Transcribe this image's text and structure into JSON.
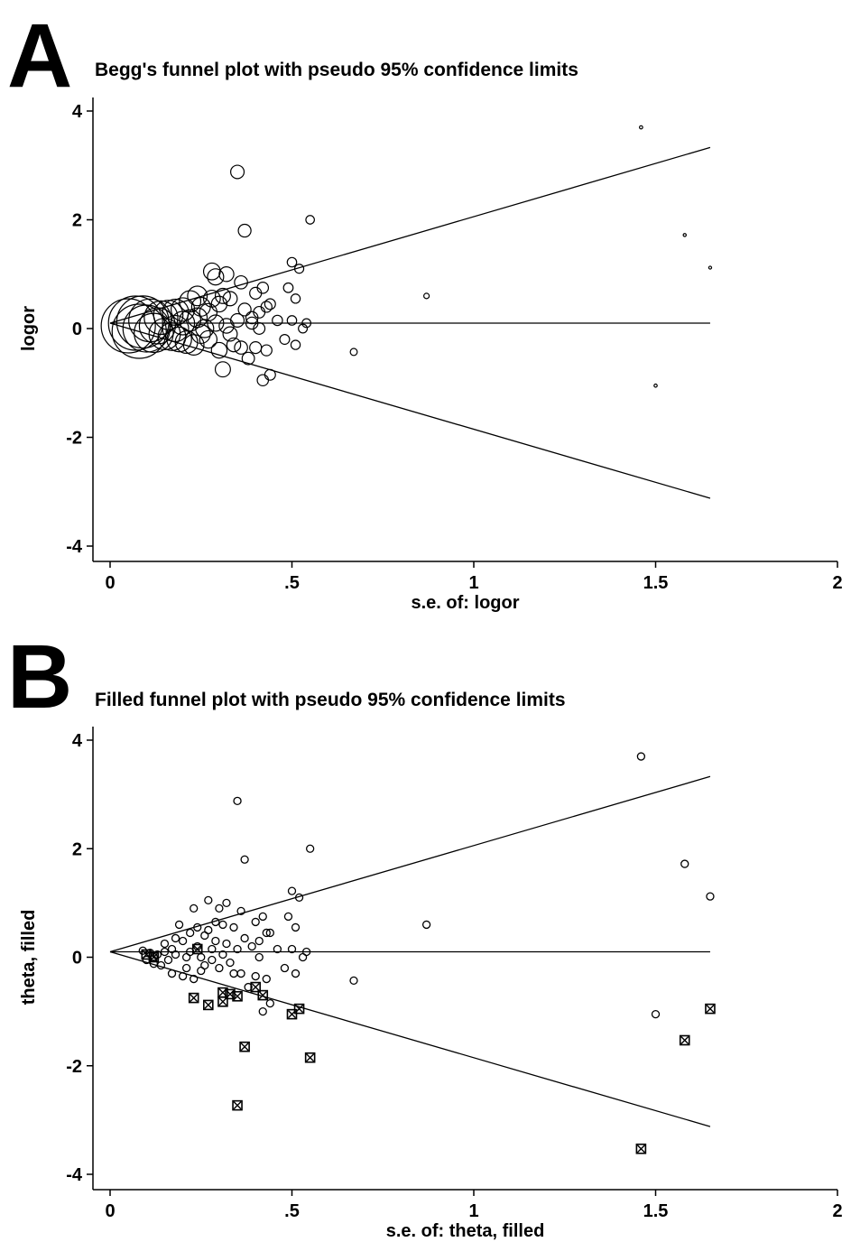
{
  "panels": [
    {
      "letter": "A",
      "title": "Begg's funnel plot with pseudo 95% confidence limits"
    },
    {
      "letter": "B",
      "title": "Filled funnel plot with pseudo 95% confidence limits"
    }
  ],
  "chart_data": [
    {
      "type": "scatter",
      "title": "Begg's funnel plot with pseudo 95% confidence limits",
      "xlabel": "s.e. of: logor",
      "ylabel": "logor",
      "xlim": [
        0,
        2
      ],
      "ylim": [
        -4,
        4
      ],
      "xticks": [
        "0",
        ".5",
        "1",
        "1.5",
        "2"
      ],
      "yticks": [
        "4",
        "2",
        "0",
        "-2",
        "-4"
      ],
      "grid": false,
      "marker": "hollow circle, size proportional to study weight",
      "pooled_estimate": 0.1,
      "confidence_limits": {
        "at_se_0": 0.1,
        "upper_at_se_1.65": 3.33,
        "lower_at_se_1.65": -3.12
      },
      "points": [
        [
          0.05,
          0.05
        ],
        [
          0.07,
          0.1
        ],
        [
          0.08,
          -0.05
        ],
        [
          0.09,
          0.12
        ],
        [
          0.1,
          0.0
        ],
        [
          0.11,
          0.15
        ],
        [
          0.12,
          -0.08
        ],
        [
          0.13,
          0.05
        ],
        [
          0.14,
          0.2
        ],
        [
          0.15,
          -0.1
        ],
        [
          0.16,
          0.25
        ],
        [
          0.17,
          -0.15
        ],
        [
          0.18,
          0.3
        ],
        [
          0.18,
          0.0
        ],
        [
          0.19,
          -0.2
        ],
        [
          0.2,
          0.35
        ],
        [
          0.2,
          0.1
        ],
        [
          0.21,
          -0.25
        ],
        [
          0.22,
          0.5
        ],
        [
          0.22,
          0.15
        ],
        [
          0.23,
          -0.3
        ],
        [
          0.24,
          0.6
        ],
        [
          0.24,
          0.2
        ],
        [
          0.25,
          -0.1
        ],
        [
          0.25,
          0.4
        ],
        [
          0.26,
          0.0
        ],
        [
          0.27,
          0.3
        ],
        [
          0.27,
          -0.2
        ],
        [
          0.28,
          1.05
        ],
        [
          0.28,
          0.55
        ],
        [
          0.29,
          0.1
        ],
        [
          0.29,
          0.95
        ],
        [
          0.3,
          -0.4
        ],
        [
          0.3,
          0.45
        ],
        [
          0.31,
          -0.75
        ],
        [
          0.31,
          0.6
        ],
        [
          0.32,
          0.05
        ],
        [
          0.32,
          1.0
        ],
        [
          0.33,
          -0.1
        ],
        [
          0.33,
          0.55
        ],
        [
          0.34,
          -0.3
        ],
        [
          0.35,
          0.15
        ],
        [
          0.35,
          2.88
        ],
        [
          0.36,
          0.85
        ],
        [
          0.36,
          -0.35
        ],
        [
          0.37,
          1.8
        ],
        [
          0.37,
          0.35
        ],
        [
          0.38,
          -0.55
        ],
        [
          0.39,
          0.2
        ],
        [
          0.39,
          0.1
        ],
        [
          0.4,
          0.65
        ],
        [
          0.4,
          -0.35
        ],
        [
          0.41,
          0.3
        ],
        [
          0.41,
          0.0
        ],
        [
          0.42,
          -0.95
        ],
        [
          0.42,
          0.75
        ],
        [
          0.43,
          -0.4
        ],
        [
          0.43,
          0.4
        ],
        [
          0.44,
          -0.85
        ],
        [
          0.44,
          0.45
        ],
        [
          0.46,
          0.15
        ],
        [
          0.48,
          -0.2
        ],
        [
          0.49,
          0.75
        ],
        [
          0.5,
          1.22
        ],
        [
          0.5,
          0.15
        ],
        [
          0.51,
          -0.3
        ],
        [
          0.51,
          0.55
        ],
        [
          0.52,
          1.1
        ],
        [
          0.53,
          0.0
        ],
        [
          0.54,
          0.1
        ],
        [
          0.55,
          2.0
        ],
        [
          0.67,
          -0.43
        ],
        [
          0.87,
          0.6
        ],
        [
          1.46,
          3.7
        ],
        [
          1.5,
          -1.05
        ],
        [
          1.58,
          1.72
        ],
        [
          1.65,
          1.12
        ]
      ]
    },
    {
      "type": "scatter",
      "title": "Filled funnel plot with pseudo 95% confidence limits",
      "xlabel": "s.e. of: theta, filled",
      "ylabel": "theta, filled",
      "xlim": [
        0,
        2
      ],
      "ylim": [
        -4,
        4
      ],
      "xticks": [
        "0",
        ".5",
        "1",
        "1.5",
        "2"
      ],
      "yticks": [
        "4",
        "2",
        "0",
        "-2",
        "-4"
      ],
      "grid": false,
      "pooled_estimate": 0.1,
      "confidence_limits": {
        "at_se_0": 0.1,
        "upper_at_se_1.65": 3.33,
        "lower_at_se_1.65": -3.12
      },
      "series": [
        {
          "marker": "hollow circle",
          "points": [
            [
              0.09,
              0.12
            ],
            [
              0.1,
              -0.05
            ],
            [
              0.11,
              0.08
            ],
            [
              0.12,
              0.0
            ],
            [
              0.12,
              -0.12
            ],
            [
              0.13,
              0.05
            ],
            [
              0.14,
              -0.15
            ],
            [
              0.15,
              0.1
            ],
            [
              0.15,
              0.25
            ],
            [
              0.16,
              -0.05
            ],
            [
              0.17,
              0.15
            ],
            [
              0.17,
              -0.3
            ],
            [
              0.18,
              0.35
            ],
            [
              0.18,
              0.05
            ],
            [
              0.19,
              0.6
            ],
            [
              0.2,
              -0.35
            ],
            [
              0.2,
              0.3
            ],
            [
              0.21,
              0.0
            ],
            [
              0.21,
              -0.2
            ],
            [
              0.22,
              0.45
            ],
            [
              0.22,
              0.1
            ],
            [
              0.23,
              0.9
            ],
            [
              0.23,
              -0.4
            ],
            [
              0.24,
              0.55
            ],
            [
              0.24,
              0.2
            ],
            [
              0.25,
              -0.25
            ],
            [
              0.25,
              0.0
            ],
            [
              0.26,
              0.4
            ],
            [
              0.26,
              -0.15
            ],
            [
              0.27,
              1.05
            ],
            [
              0.27,
              0.5
            ],
            [
              0.28,
              0.15
            ],
            [
              0.28,
              -0.05
            ],
            [
              0.29,
              0.3
            ],
            [
              0.29,
              0.65
            ],
            [
              0.3,
              0.9
            ],
            [
              0.3,
              -0.2
            ],
            [
              0.31,
              0.05
            ],
            [
              0.31,
              0.6
            ],
            [
              0.32,
              1.0
            ],
            [
              0.32,
              0.25
            ],
            [
              0.33,
              -0.1
            ],
            [
              0.34,
              0.55
            ],
            [
              0.34,
              -0.3
            ],
            [
              0.35,
              2.88
            ],
            [
              0.35,
              0.15
            ],
            [
              0.36,
              0.85
            ],
            [
              0.36,
              -0.3
            ],
            [
              0.37,
              1.8
            ],
            [
              0.37,
              0.35
            ],
            [
              0.38,
              -0.55
            ],
            [
              0.39,
              0.2
            ],
            [
              0.4,
              0.65
            ],
            [
              0.4,
              -0.35
            ],
            [
              0.41,
              0.3
            ],
            [
              0.41,
              0.0
            ],
            [
              0.42,
              -1.0
            ],
            [
              0.42,
              0.75
            ],
            [
              0.43,
              -0.4
            ],
            [
              0.43,
              0.45
            ],
            [
              0.44,
              -0.85
            ],
            [
              0.44,
              0.45
            ],
            [
              0.46,
              0.15
            ],
            [
              0.48,
              -0.2
            ],
            [
              0.49,
              0.75
            ],
            [
              0.5,
              1.22
            ],
            [
              0.5,
              0.15
            ],
            [
              0.51,
              -0.3
            ],
            [
              0.51,
              0.55
            ],
            [
              0.52,
              1.1
            ],
            [
              0.53,
              0.0
            ],
            [
              0.54,
              0.1
            ],
            [
              0.55,
              2.0
            ],
            [
              0.67,
              -0.43
            ],
            [
              0.87,
              0.6
            ],
            [
              1.46,
              3.7
            ],
            [
              1.5,
              -1.05
            ],
            [
              1.58,
              1.72
            ],
            [
              1.65,
              1.12
            ]
          ]
        },
        {
          "marker": "filled-in square",
          "points": [
            [
              0.1,
              0.05
            ],
            [
              0.12,
              0.0
            ],
            [
              0.23,
              -0.75
            ],
            [
              0.24,
              0.15
            ],
            [
              0.27,
              -0.88
            ],
            [
              0.31,
              -0.82
            ],
            [
              0.31,
              -0.65
            ],
            [
              0.33,
              -0.68
            ],
            [
              0.35,
              -2.73
            ],
            [
              0.35,
              -0.72
            ],
            [
              0.37,
              -1.65
            ],
            [
              0.4,
              -0.55
            ],
            [
              0.42,
              -0.7
            ],
            [
              0.5,
              -1.05
            ],
            [
              0.52,
              -0.95
            ],
            [
              0.55,
              -1.85
            ],
            [
              1.46,
              -3.53
            ],
            [
              1.58,
              -1.53
            ],
            [
              1.65,
              -0.95
            ]
          ]
        }
      ]
    }
  ]
}
